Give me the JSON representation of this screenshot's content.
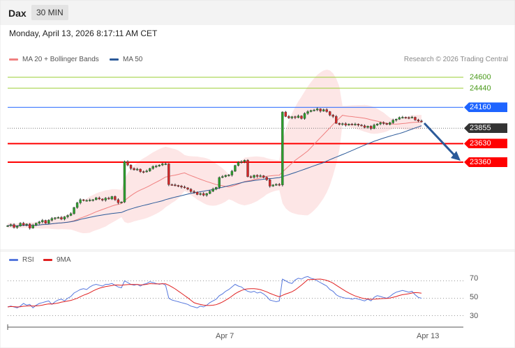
{
  "header": {
    "symbol": "Dax",
    "timeframe": "30 MIN",
    "datetime": "Monday, April 13, 2026 8:17:11 AM CET"
  },
  "legend": {
    "ma20": "MA 20 + Bollinger Bands",
    "ma50": "MA 50",
    "ma20_color": "#f08080",
    "ma50_color": "#2b5a99"
  },
  "credit": "Research © 2026 Trading Central",
  "levels": [
    {
      "value": 24600,
      "label": "24600",
      "color": "#9acd32",
      "style": "plain"
    },
    {
      "value": 24440,
      "label": "24440",
      "color": "#9acd32",
      "style": "plain"
    },
    {
      "value": 24160,
      "label": "24160",
      "color": "#1e64ff",
      "style": "boxed"
    },
    {
      "value": 23855,
      "label": "23855",
      "color": "#333333",
      "style": "boxed"
    },
    {
      "value": 23630,
      "label": "23630",
      "color": "#ff0000",
      "style": "boxed"
    },
    {
      "value": 23360,
      "label": "23360",
      "color": "#ff0000",
      "style": "boxed"
    }
  ],
  "rsi_legend": {
    "rsi": "RSI",
    "ma": "9MA",
    "rsi_color": "#5577dd",
    "ma_color": "#e02020"
  },
  "rsi_ticks": [
    "70",
    "50",
    "30"
  ],
  "x_ticks": [
    "Apr 7",
    "Apr 13"
  ],
  "chart_data": {
    "type": "candlestick",
    "price_range": [
      22380,
      24600
    ],
    "close": [
      22432,
      22448,
      22408,
      22428,
      22468,
      22442,
      22456,
      22398,
      22440,
      22468,
      22488,
      22510,
      22468,
      22512,
      22538,
      22548,
      22552,
      22528,
      22562,
      22582,
      22608,
      22698,
      22766,
      22812,
      22798,
      22802,
      22808,
      22812,
      22838,
      22822,
      22806,
      22835,
      22822,
      22858,
      22812,
      22768,
      22778,
      23368,
      23318,
      23268,
      23248,
      23258,
      23222,
      23218,
      23232,
      23268,
      23298,
      23302,
      23318,
      23335,
      23336,
      23032,
      23028,
      23020,
      23012,
      22998,
      22985,
      22965,
      22932,
      22922,
      22888,
      22902,
      22878,
      22902,
      22936,
      22968,
      22991,
      23136,
      23150,
      23168,
      23172,
      23228,
      23312,
      23358,
      23368,
      23388,
      23148,
      23138,
      23168,
      23152,
      23162,
      23138,
      23104,
      23010,
      23028,
      23036,
      23028,
      24092,
      24028,
      24006,
      24024,
      24011,
      24035,
      23998,
      24072,
      24098,
      24115,
      24122,
      24138,
      24106,
      24127,
      24098,
      24048,
      24028,
      23928,
      23911,
      23922,
      23902,
      23916,
      23910,
      23916,
      23902,
      23891,
      23868,
      23885,
      23852,
      23902,
      23918,
      23936,
      23926,
      23911,
      23936,
      23974,
      23988,
      24012,
      24016,
      24012,
      24010,
      24016,
      23978,
      23961,
      23960
    ],
    "rsi": [
      40,
      41,
      40,
      39,
      41,
      44,
      42,
      43,
      39,
      42,
      44,
      45,
      46,
      47,
      43,
      46,
      48,
      49,
      47,
      50,
      52,
      56,
      58,
      60,
      61,
      60,
      63,
      65,
      66,
      65,
      64,
      66,
      66,
      67,
      65,
      63,
      62,
      70,
      68,
      66,
      65,
      66,
      64,
      66,
      67,
      69,
      68,
      67,
      66,
      67,
      65,
      50,
      48,
      47,
      46,
      45,
      44,
      43,
      41,
      40,
      39,
      41,
      40,
      42,
      45,
      47,
      49,
      53,
      55,
      58,
      60,
      63,
      66,
      64,
      63,
      60,
      58,
      57,
      58,
      56,
      57,
      55,
      52,
      48,
      47,
      46,
      47,
      72,
      70,
      68,
      67,
      71,
      73,
      72,
      74,
      75,
      73,
      72,
      70,
      68,
      66,
      64,
      60,
      58,
      54,
      52,
      51,
      50,
      50,
      49,
      50,
      49,
      48,
      47,
      49,
      47,
      51,
      53,
      52,
      51,
      50,
      52,
      55,
      57,
      58,
      59,
      58,
      57,
      58,
      54,
      51,
      50
    ],
    "series": [
      {
        "name": "RSI"
      },
      {
        "name": "9MA"
      },
      {
        "name": "MA 20 + Bollinger Bands"
      },
      {
        "name": "MA 50"
      }
    ],
    "rsi_range": [
      20,
      80
    ],
    "x_tick_labels": [
      "Apr 7",
      "Apr 13"
    ]
  }
}
